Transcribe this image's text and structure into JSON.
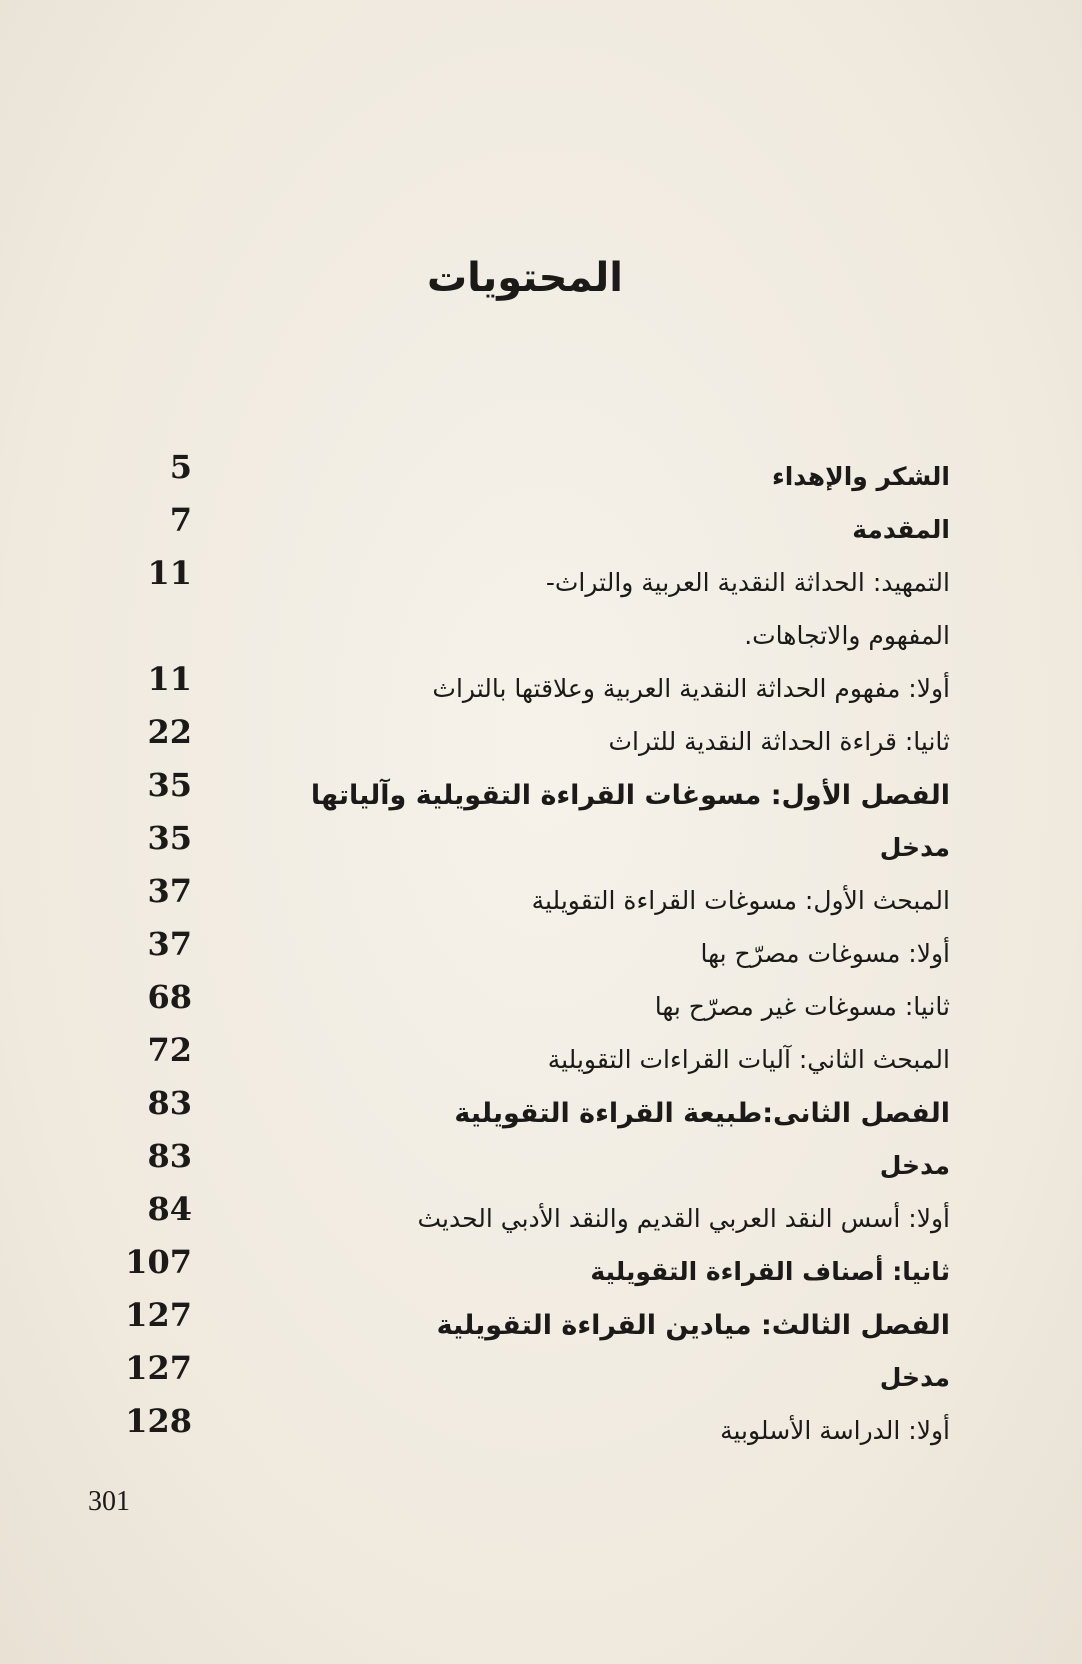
{
  "title": "المحتويات",
  "entries": [
    {
      "text": "الشكر والإهداء",
      "page": "5",
      "style": "bold"
    },
    {
      "text": "المقدمة",
      "page": "7",
      "style": "bold"
    },
    {
      "text": "التمهيد: الحداثة النقدية العربية والتراث-",
      "page": "11",
      "style": "normal"
    },
    {
      "text": "المفهوم والاتجاهات.",
      "page": "",
      "style": "normal"
    },
    {
      "text": "أولا: مفهوم الحداثة النقدية العربية وعلاقتها بالتراث",
      "page": "11",
      "style": "normal"
    },
    {
      "text": "ثانيا: قراءة الحداثة النقدية للتراث",
      "page": "22",
      "style": "normal"
    },
    {
      "text": "الفصل الأول: مسوغات القراءة التقويلية وآلياتها",
      "page": "35",
      "style": "chapter"
    },
    {
      "text": "مدخل",
      "page": "35",
      "style": "bold"
    },
    {
      "text": "المبحث الأول: مسوغات القراءة التقويلية",
      "page": "37",
      "style": "normal"
    },
    {
      "text": "أولا: مسوغات مصرّح بها",
      "page": "37",
      "style": "normal"
    },
    {
      "text": "ثانيا: مسوغات غير مصرّح بها",
      "page": "68",
      "style": "normal"
    },
    {
      "text": "المبحث الثاني: آليات القراءات التقويلية",
      "page": "72",
      "style": "normal"
    },
    {
      "text": "الفصل الثانى:طبيعة القراءة التقويلية",
      "page": "83",
      "style": "chapter"
    },
    {
      "text": "مدخل",
      "page": "83",
      "style": "bold"
    },
    {
      "text": "أولا: أسس النقد العربي القديم والنقد الأدبي الحديث",
      "page": "84",
      "style": "normal"
    },
    {
      "text": "ثانيا: أصناف القراءة التقويلية",
      "page": "107",
      "style": "bold"
    },
    {
      "text": "الفصل الثالث: ميادين القراءة التقويلية",
      "page": "127",
      "style": "chapter"
    },
    {
      "text": "مدخل",
      "page": "127",
      "style": "bold"
    },
    {
      "text": "أولا: الدراسة الأسلوبية",
      "page": "128",
      "style": "normal"
    }
  ],
  "folio": "301"
}
